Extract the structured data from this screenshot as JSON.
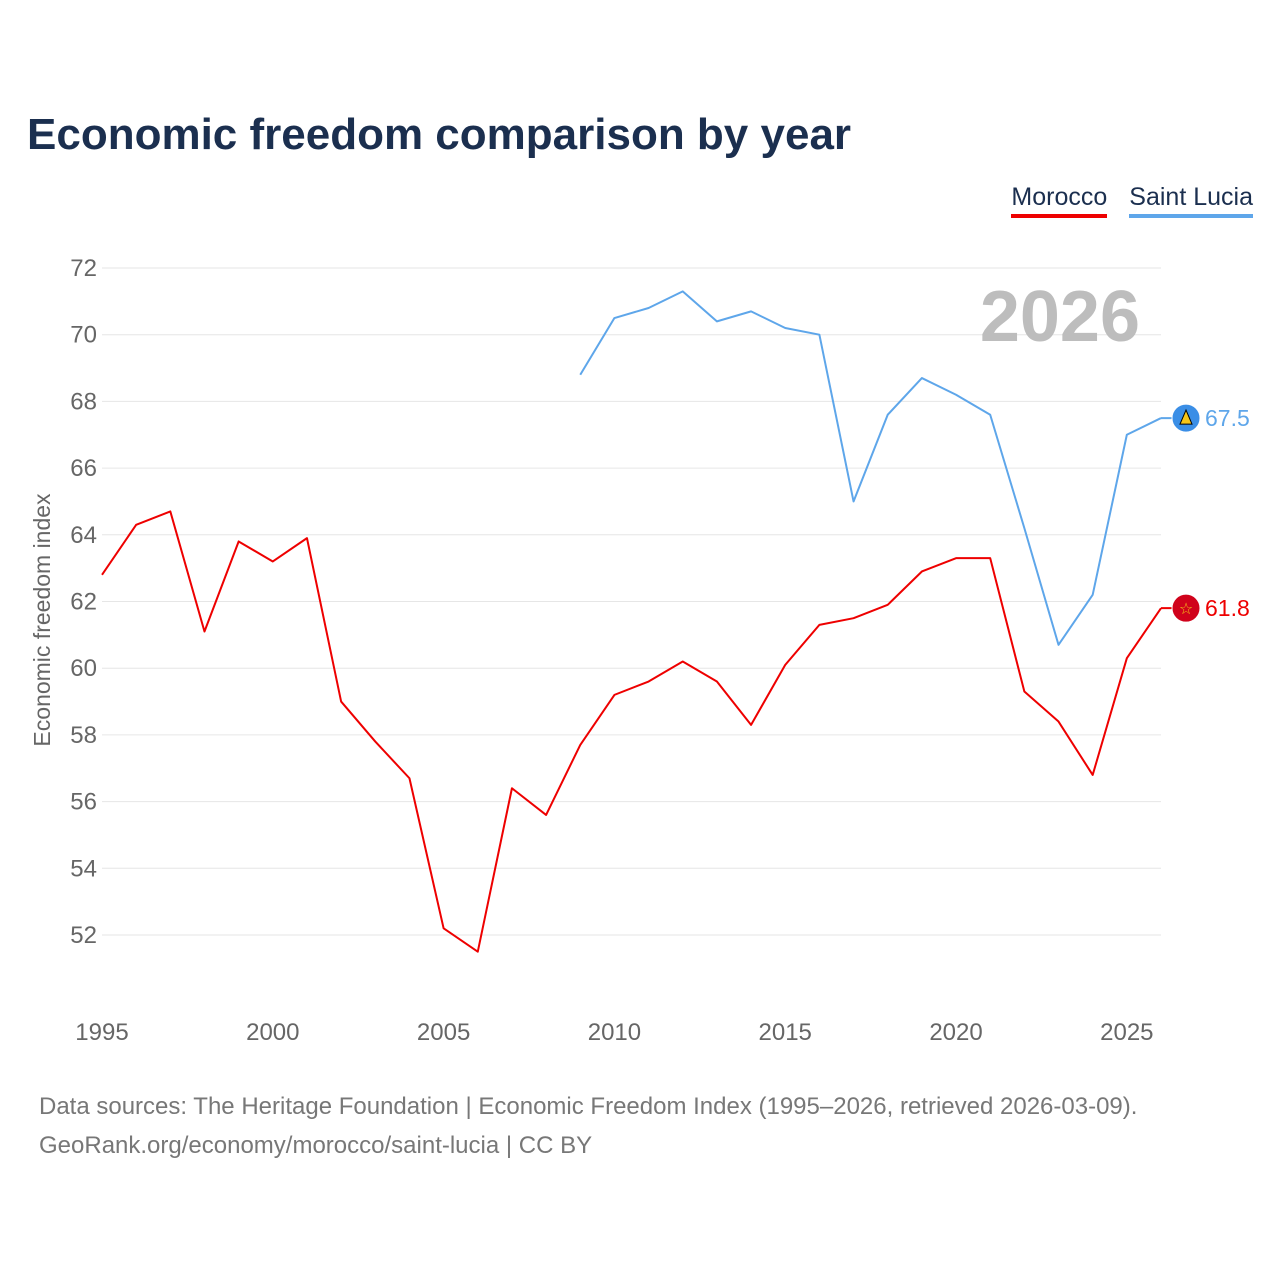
{
  "chart_data": {
    "type": "line",
    "title": "Economic freedom comparison by year",
    "xlabel": "",
    "ylabel": "Economic freedom index",
    "xlim": [
      1995,
      2026
    ],
    "ylim": [
      50,
      72
    ],
    "yticks": [
      52,
      54,
      56,
      58,
      60,
      62,
      64,
      66,
      68,
      70,
      72
    ],
    "xticks": [
      1995,
      2000,
      2005,
      2010,
      2015,
      2020,
      2025
    ],
    "grid": true,
    "legend": "top-right",
    "year_watermark": "2026",
    "series": [
      {
        "name": "Morocco",
        "color": "#ee0000",
        "end_label": "61.8",
        "icon": "morocco-flag-icon",
        "x": [
          1995,
          1996,
          1997,
          1998,
          1999,
          2000,
          2001,
          2002,
          2003,
          2004,
          2005,
          2006,
          2007,
          2008,
          2009,
          2010,
          2011,
          2012,
          2013,
          2014,
          2015,
          2016,
          2017,
          2018,
          2019,
          2020,
          2021,
          2022,
          2023,
          2024,
          2025,
          2026
        ],
        "values": [
          62.8,
          64.3,
          64.7,
          61.1,
          63.8,
          63.2,
          63.9,
          59.0,
          57.8,
          56.7,
          52.2,
          51.5,
          56.4,
          55.6,
          57.7,
          59.2,
          59.6,
          60.2,
          59.6,
          58.3,
          60.1,
          61.3,
          61.5,
          61.9,
          62.9,
          63.3,
          63.3,
          59.3,
          58.4,
          56.8,
          60.3,
          61.8
        ]
      },
      {
        "name": "Saint Lucia",
        "color": "#5ea6ea",
        "end_label": "67.5",
        "icon": "saint-lucia-flag-icon",
        "x": [
          2009,
          2010,
          2011,
          2012,
          2013,
          2014,
          2015,
          2016,
          2017,
          2018,
          2019,
          2020,
          2021,
          2022,
          2023,
          2024,
          2025,
          2026
        ],
        "values": [
          68.8,
          70.5,
          70.8,
          71.3,
          70.4,
          70.7,
          70.2,
          70.0,
          65.0,
          67.6,
          68.7,
          68.2,
          67.6,
          64.2,
          60.7,
          62.2,
          67.0,
          67.5
        ]
      }
    ]
  },
  "footer": {
    "line1": "Data sources: The Heritage Foundation | Economic Freedom Index (1995–2026, retrieved 2026-03-09).",
    "line2": "GeoRank.org/economy/morocco/saint-lucia | CC BY"
  }
}
